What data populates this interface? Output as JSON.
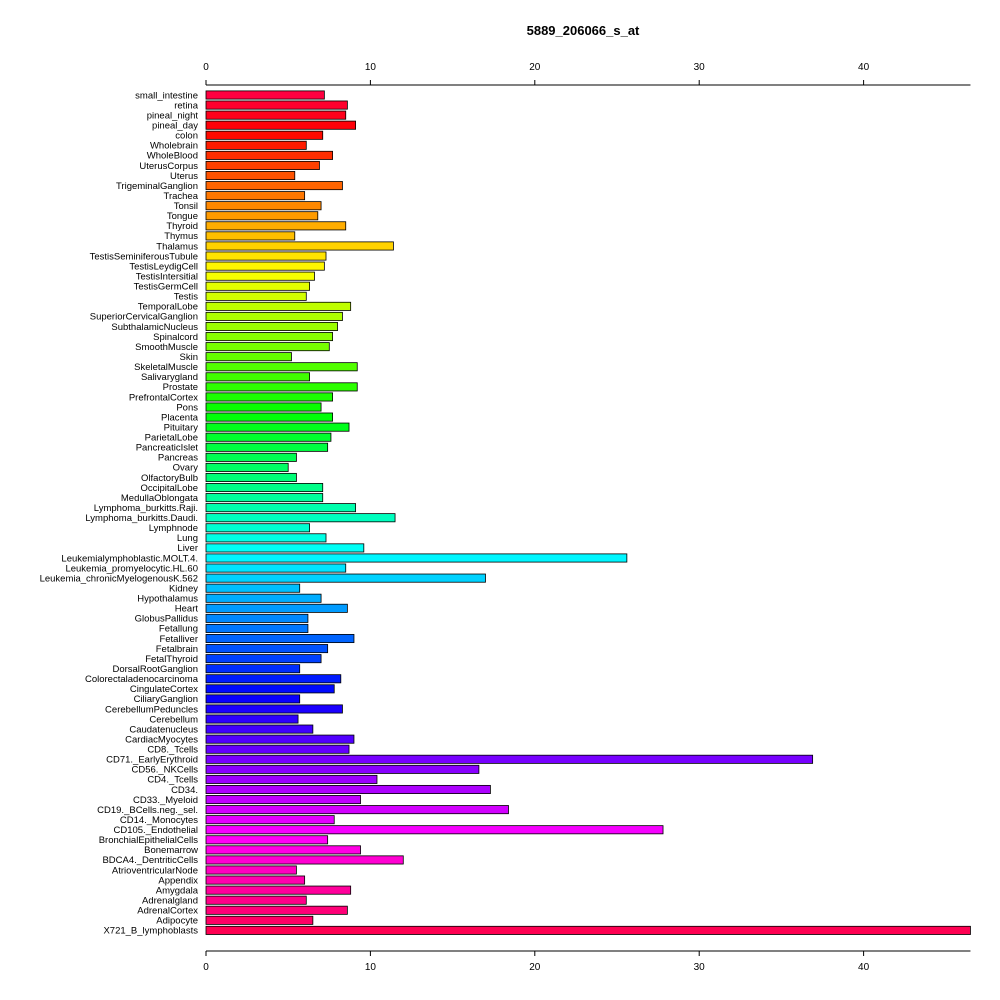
{
  "chart_data": {
    "type": "bar",
    "orientation": "horizontal",
    "title": "5889_206066_s_at",
    "xlabel": "",
    "ylabel": "",
    "xlim": [
      0,
      46.5
    ],
    "xticks": [
      0,
      10,
      20,
      30,
      40
    ],
    "grid": false,
    "categories": [
      "small_intestine",
      "retina",
      "pineal_night",
      "pineal_day",
      "colon",
      "Wholebrain",
      "WholeBlood",
      "UterusCorpus",
      "Uterus",
      "TrigeminalGanglion",
      "Trachea",
      "Tonsil",
      "Tongue",
      "Thyroid",
      "Thymus",
      "Thalamus",
      "TestisSeminiferousTubule",
      "TestisLeydigCell",
      "TestisIntersitial",
      "TestisGermCell",
      "Testis",
      "TemporalLobe",
      "SuperiorCervicalGanglion",
      "SubthalamicNucleus",
      "Spinalcord",
      "SmoothMuscle",
      "Skin",
      "SkeletalMuscle",
      "Salivarygland",
      "Prostate",
      "PrefrontalCortex",
      "Pons",
      "Placenta",
      "Pituitary",
      "ParietalLobe",
      "PancreaticIslet",
      "Pancreas",
      "Ovary",
      "OlfactoryBulb",
      "OccipitalLobe",
      "MedullaOblongata",
      "Lymphoma_burkitts.Raji.",
      "Lymphoma_burkitts.Daudi.",
      "Lymphnode",
      "Lung",
      "Liver",
      "Leukemialymphoblastic.MOLT.4.",
      "Leukemia_promyelocytic.HL.60",
      "Leukemia_chronicMyelogenousK.562",
      "Kidney",
      "Hypothalamus",
      "Heart",
      "GlobusPallidus",
      "Fetallung",
      "Fetalliver",
      "Fetalbrain",
      "FetalThyroid",
      "DorsalRootGanglion",
      "Colorectaladenocarcinoma",
      "CingulateCortex",
      "CiliaryGanglion",
      "CerebellumPeduncles",
      "Cerebellum",
      "Caudatenucleus",
      "CardiacMyocytes",
      "CD8._Tcells",
      "CD71._EarlyErythroid",
      "CD56._NKCells",
      "CD4._Tcells",
      "CD34.",
      "CD33._Myeloid",
      "CD19._BCells.neg._sel.",
      "CD14._Monocytes",
      "CD105._Endothelial",
      "BronchialEpithelialCells",
      "Bonemarrow",
      "BDCA4._DentriticCells",
      "AtrioventricularNode",
      "Appendix",
      "Amygdala",
      "Adrenalgland",
      "AdrenalCortex",
      "Adipocyte",
      "X721_B_lymphoblasts"
    ],
    "values": [
      7.2,
      8.6,
      8.5,
      9.1,
      7.1,
      6.1,
      7.7,
      6.9,
      5.4,
      8.3,
      6.0,
      7.0,
      6.8,
      8.5,
      5.4,
      11.4,
      7.3,
      7.2,
      6.6,
      6.3,
      6.1,
      8.8,
      8.3,
      8.0,
      7.7,
      7.5,
      5.2,
      9.2,
      6.3,
      9.2,
      7.7,
      7.0,
      7.7,
      8.7,
      7.6,
      7.4,
      5.5,
      5.0,
      5.5,
      7.1,
      7.1,
      9.1,
      11.5,
      6.3,
      7.3,
      9.6,
      25.6,
      8.5,
      17.0,
      5.7,
      7.0,
      8.6,
      6.2,
      6.2,
      9.0,
      7.4,
      7.0,
      5.7,
      8.2,
      7.8,
      5.7,
      8.3,
      5.6,
      6.5,
      9.0,
      8.7,
      36.9,
      16.6,
      10.4,
      17.3,
      9.4,
      18.4,
      7.8,
      27.8,
      7.4,
      9.4,
      12.0,
      5.5,
      6.0,
      8.8,
      6.1,
      8.6,
      6.5,
      46.5
    ]
  }
}
